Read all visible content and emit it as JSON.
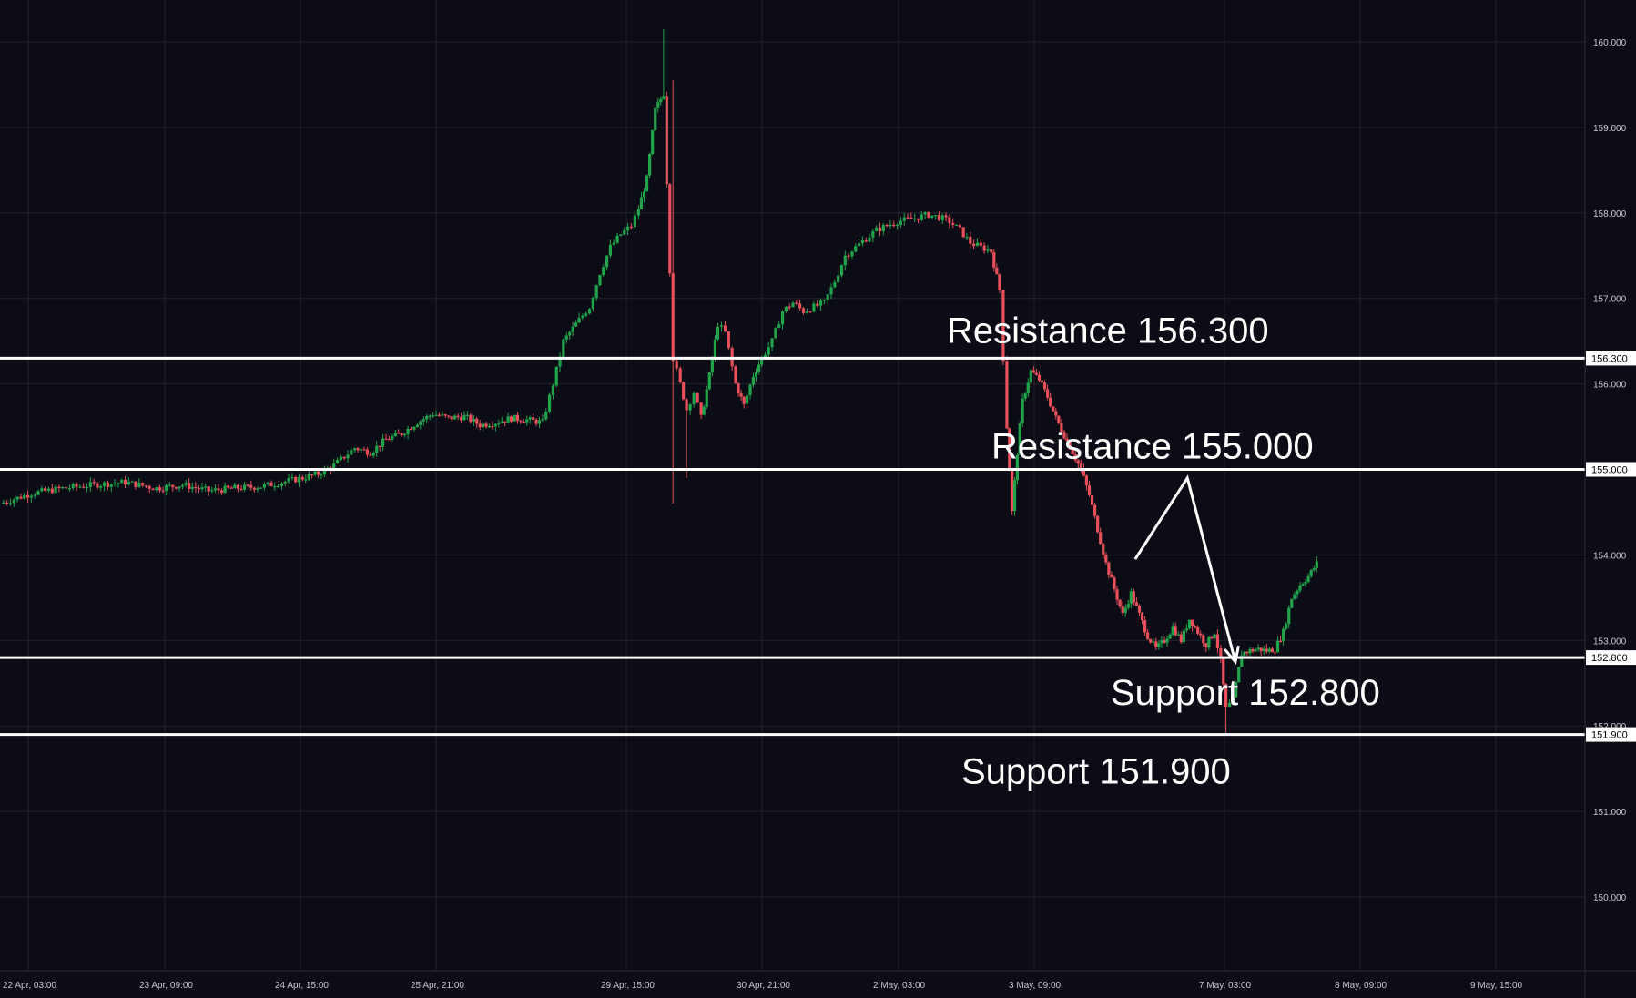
{
  "chart_data": {
    "type": "candlestick",
    "title": "",
    "xlabel": "",
    "ylabel": "",
    "ylim": [
      149.2,
      160.5
    ],
    "grid": true,
    "colors": {
      "background": "#0c0c16",
      "up": "#1fa44a",
      "down": "#e9505a",
      "levels": "#ffffff",
      "grid": "#22232e"
    },
    "y_ticks": [
      "150.000",
      "151.000",
      "152.000",
      "153.000",
      "154.000",
      "155.000",
      "156.000",
      "157.000",
      "158.000",
      "159.000",
      "160.000"
    ],
    "x_ticks": [
      "22 Apr, 03:00",
      "23 Apr, 09:00",
      "24 Apr, 15:00",
      "25 Apr, 21:00",
      "29 Apr, 15:00",
      "30 Apr, 21:00",
      "2 May, 03:00",
      "3 May, 09:00",
      "7 May, 03:00",
      "8 May, 09:00",
      "9 May, 15:00"
    ],
    "levels": [
      {
        "label": "Resistance 156.300",
        "value": 156.3,
        "tag": "156.300"
      },
      {
        "label": "Resistance 155.000",
        "value": 155.0,
        "tag": "155.000"
      },
      {
        "label": "Support 152.800",
        "value": 152.8,
        "tag": "152.800"
      },
      {
        "label": "Support 151.900",
        "value": 151.9,
        "tag": "151.900"
      }
    ],
    "price_path": [
      [
        0,
        154.6
      ],
      [
        30,
        154.72
      ],
      [
        60,
        154.78
      ],
      [
        90,
        154.82
      ],
      [
        120,
        154.85
      ],
      [
        150,
        154.78
      ],
      [
        175,
        154.82
      ],
      [
        200,
        154.75
      ],
      [
        225,
        154.78
      ],
      [
        250,
        154.8
      ],
      [
        270,
        154.85
      ],
      [
        290,
        154.9
      ],
      [
        305,
        154.95
      ],
      [
        320,
        155.05
      ],
      [
        340,
        155.25
      ],
      [
        355,
        155.2
      ],
      [
        370,
        155.35
      ],
      [
        385,
        155.42
      ],
      [
        400,
        155.55
      ],
      [
        415,
        155.65
      ],
      [
        430,
        155.6
      ],
      [
        445,
        155.62
      ],
      [
        460,
        155.52
      ],
      [
        475,
        155.55
      ],
      [
        490,
        155.6
      ],
      [
        505,
        155.58
      ],
      [
        520,
        155.55
      ],
      [
        530,
        156.0
      ],
      [
        540,
        156.5
      ],
      [
        555,
        156.75
      ],
      [
        565,
        156.9
      ],
      [
        575,
        157.3
      ],
      [
        585,
        157.6
      ],
      [
        595,
        157.75
      ],
      [
        605,
        157.85
      ],
      [
        612,
        158.05
      ],
      [
        620,
        158.4
      ],
      [
        628,
        159.2
      ],
      [
        636,
        159.4
      ],
      [
        645,
        156.3
      ],
      [
        652,
        156.0
      ],
      [
        658,
        155.7
      ],
      [
        665,
        155.9
      ],
      [
        672,
        155.6
      ],
      [
        680,
        156.1
      ],
      [
        688,
        156.7
      ],
      [
        695,
        156.6
      ],
      [
        705,
        156.0
      ],
      [
        713,
        155.75
      ],
      [
        722,
        156.1
      ],
      [
        730,
        156.3
      ],
      [
        740,
        156.5
      ],
      [
        750,
        156.85
      ],
      [
        760,
        156.95
      ],
      [
        770,
        156.85
      ],
      [
        780,
        156.9
      ],
      [
        790,
        156.95
      ],
      [
        800,
        157.2
      ],
      [
        810,
        157.5
      ],
      [
        820,
        157.6
      ],
      [
        830,
        157.7
      ],
      [
        840,
        157.8
      ],
      [
        850,
        157.85
      ],
      [
        860,
        157.9
      ],
      [
        870,
        157.92
      ],
      [
        880,
        157.95
      ],
      [
        890,
        157.98
      ],
      [
        900,
        157.95
      ],
      [
        910,
        157.9
      ],
      [
        920,
        157.8
      ],
      [
        930,
        157.65
      ],
      [
        940,
        157.6
      ],
      [
        950,
        157.55
      ],
      [
        958,
        157.1
      ],
      [
        965,
        155.5
      ],
      [
        970,
        154.5
      ],
      [
        975,
        155.2
      ],
      [
        980,
        155.8
      ],
      [
        988,
        156.15
      ],
      [
        996,
        156.05
      ],
      [
        1004,
        155.85
      ],
      [
        1012,
        155.6
      ],
      [
        1020,
        155.4
      ],
      [
        1028,
        155.2
      ],
      [
        1036,
        155.0
      ],
      [
        1044,
        154.7
      ],
      [
        1052,
        154.3
      ],
      [
        1060,
        153.9
      ],
      [
        1068,
        153.6
      ],
      [
        1076,
        153.3
      ],
      [
        1084,
        153.55
      ],
      [
        1092,
        153.3
      ],
      [
        1100,
        153.05
      ],
      [
        1108,
        152.9
      ],
      [
        1116,
        153.0
      ],
      [
        1124,
        153.15
      ],
      [
        1132,
        153.0
      ],
      [
        1140,
        153.25
      ],
      [
        1148,
        153.1
      ],
      [
        1156,
        152.95
      ],
      [
        1164,
        153.1
      ],
      [
        1170,
        152.75
      ],
      [
        1175,
        152.2
      ],
      [
        1182,
        152.3
      ],
      [
        1190,
        152.85
      ],
      [
        1198,
        152.88
      ],
      [
        1206,
        152.9
      ],
      [
        1214,
        152.88
      ],
      [
        1222,
        152.9
      ],
      [
        1230,
        153.1
      ],
      [
        1238,
        153.5
      ],
      [
        1246,
        153.65
      ],
      [
        1254,
        153.75
      ],
      [
        1262,
        153.9
      ]
    ]
  }
}
